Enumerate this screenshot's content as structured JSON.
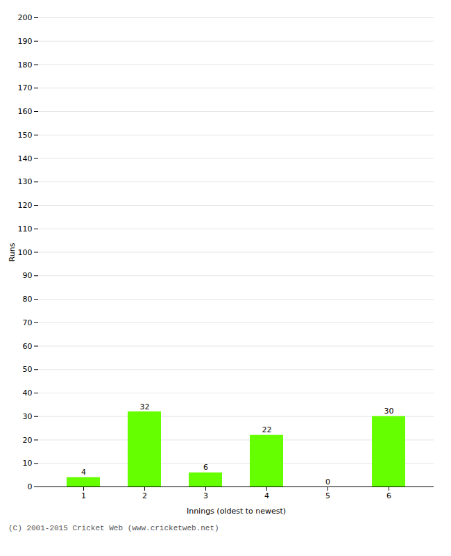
{
  "chart_data": {
    "type": "bar",
    "categories": [
      1,
      2,
      3,
      4,
      5,
      6
    ],
    "values": [
      4,
      32,
      6,
      22,
      0,
      30
    ],
    "color": "#66ff00",
    "xlabel": "Innings (oldest to newest)",
    "ylabel": "Runs",
    "ylim": [
      0,
      200
    ],
    "yticks": [
      0,
      10,
      20,
      30,
      40,
      50,
      60,
      70,
      80,
      90,
      100,
      110,
      120,
      130,
      140,
      150,
      160,
      170,
      180,
      190,
      200
    ],
    "grid": true,
    "data_labels": true,
    "caption": "(C) 2001-2015 Cricket Web (www.cricketweb.net)"
  }
}
